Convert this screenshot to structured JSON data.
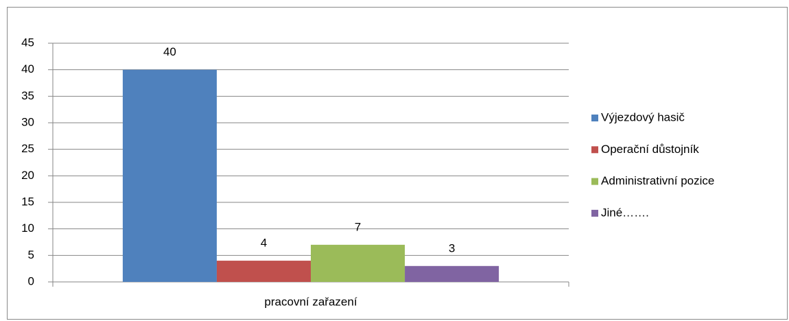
{
  "chart_data": {
    "type": "bar",
    "categories": [
      "pracovní zařazení"
    ],
    "series": [
      {
        "name": "Výjezdový hasič",
        "color": "#4f81bd",
        "values": [
          40
        ]
      },
      {
        "name": "Operační důstojník",
        "color": "#c0504d",
        "values": [
          4
        ]
      },
      {
        "name": "Administrativní pozice",
        "color": "#9bbb59",
        "values": [
          7
        ]
      },
      {
        "name": "Jiné…….",
        "color": "#8064a2",
        "values": [
          3
        ]
      }
    ],
    "ylim": [
      0,
      45
    ],
    "yticks": [
      0,
      5,
      10,
      15,
      20,
      25,
      30,
      35,
      40,
      45
    ],
    "grid": true,
    "legend": "right"
  }
}
